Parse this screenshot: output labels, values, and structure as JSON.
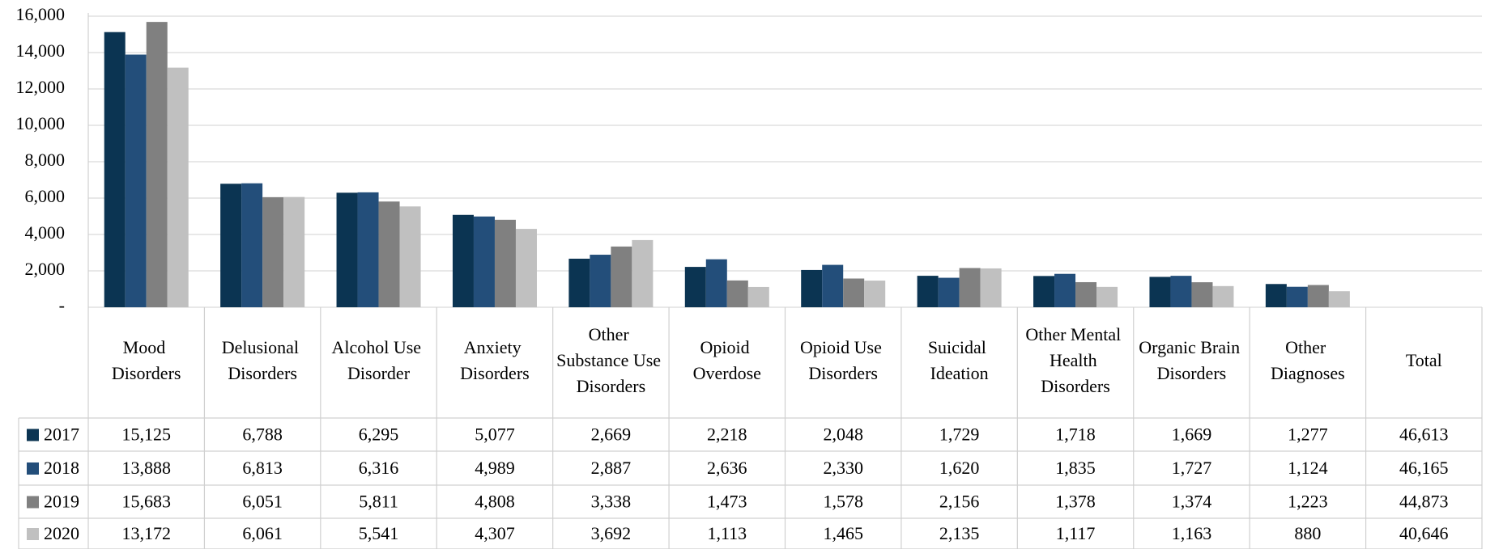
{
  "chart_data": {
    "type": "bar",
    "categories": [
      "Mood Disorders",
      "Delusional Disorders",
      "Alcohol Use Disorder",
      "Anxiety Disorders",
      "Other Substance Use Disorders",
      "Opioid Overdose",
      "Opioid Use Disorders",
      "Suicidal Ideation",
      "Other Mental Health Disorders",
      "Organic Brain Disorders",
      "Other Diagnoses"
    ],
    "total_heading": "Total",
    "series": [
      {
        "name": "2017",
        "color": "#0b3452",
        "values": [
          15125,
          6788,
          6295,
          5077,
          2669,
          2218,
          2048,
          1729,
          1718,
          1669,
          1277
        ],
        "value_labels": [
          "15,125",
          "6,788",
          "6,295",
          "5,077",
          "2,669",
          "2,218",
          "2,048",
          "1,729",
          "1,718",
          "1,669",
          "1,277"
        ],
        "total": 46613,
        "total_label": "46,613"
      },
      {
        "name": "2018",
        "color": "#234e7a",
        "values": [
          13888,
          6813,
          6316,
          4989,
          2887,
          2636,
          2330,
          1620,
          1835,
          1727,
          1124
        ],
        "value_labels": [
          "13,888",
          "6,813",
          "6,316",
          "4,989",
          "2,887",
          "2,636",
          "2,330",
          "1,620",
          "1,835",
          "1,727",
          "1,124"
        ],
        "total": 46165,
        "total_label": "46,165"
      },
      {
        "name": "2019",
        "color": "#808080",
        "values": [
          15683,
          6051,
          5811,
          4808,
          3338,
          1473,
          1578,
          2156,
          1378,
          1374,
          1223
        ],
        "value_labels": [
          "15,683",
          "6,051",
          "5,811",
          "4,808",
          "3,338",
          "1,473",
          "1,578",
          "2,156",
          "1,378",
          "1,374",
          "1,223"
        ],
        "total": 44873,
        "total_label": "44,873"
      },
      {
        "name": "2020",
        "color": "#c0c0c0",
        "values": [
          13172,
          6061,
          5541,
          4307,
          3692,
          1113,
          1465,
          2135,
          1117,
          1163,
          880
        ],
        "value_labels": [
          "13,172",
          "6,061",
          "5,541",
          "4,307",
          "3,692",
          "1,113",
          "1,465",
          "2,135",
          "1,117",
          "1,163",
          "880"
        ],
        "total": 40646,
        "total_label": "40,646"
      }
    ],
    "ylim": [
      0,
      16000
    ],
    "yticks": [
      {
        "value": 0,
        "label": "-"
      },
      {
        "value": 2000,
        "label": "2,000"
      },
      {
        "value": 4000,
        "label": "4,000"
      },
      {
        "value": 6000,
        "label": "6,000"
      },
      {
        "value": 8000,
        "label": "8,000"
      },
      {
        "value": 10000,
        "label": "10,000"
      },
      {
        "value": 12000,
        "label": "12,000"
      },
      {
        "value": 14000,
        "label": "14,000"
      },
      {
        "value": 16000,
        "label": "16,000"
      }
    ],
    "grid": true
  }
}
